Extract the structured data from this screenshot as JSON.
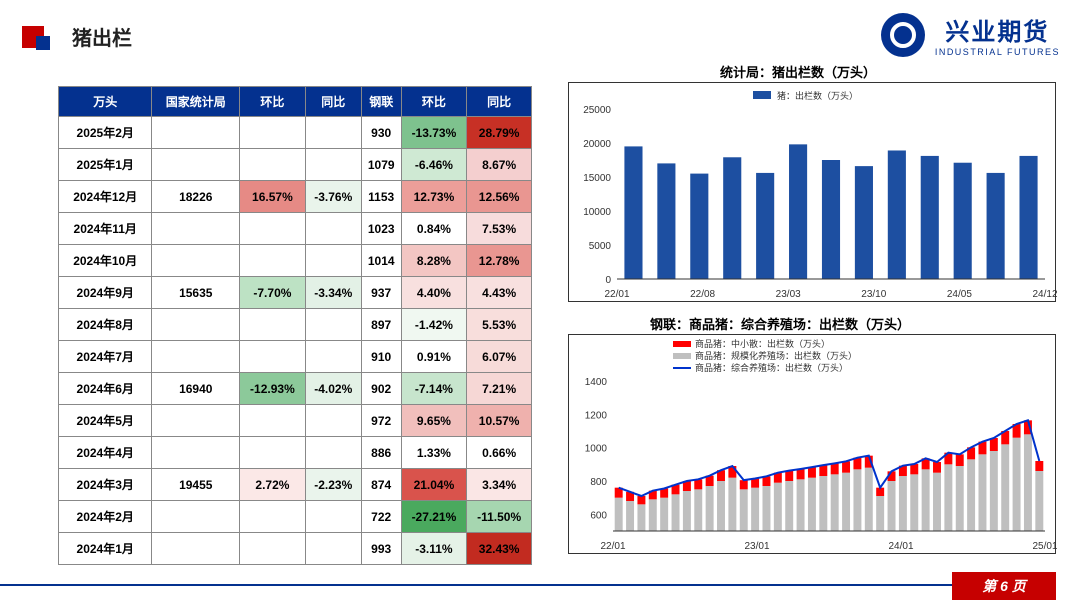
{
  "header": {
    "title": "猪出栏"
  },
  "logo": {
    "cn": "兴业期货",
    "en": "INDUSTRIAL FUTURES"
  },
  "footer": {
    "page": "第 6 页"
  },
  "colors": {
    "brand_red": "#c60000",
    "brand_blue": "#04318f",
    "bar_blue": "#1d4fa1",
    "bar_grey": "#bfbfbf",
    "bar_red": "#ff0000",
    "line_blue": "#0033cc",
    "axis": "#333333",
    "grid": "#e8e8e8",
    "bg": "#ffffff"
  },
  "table": {
    "headers": [
      "万头",
      "国家统计局",
      "环比",
      "同比",
      "钢联",
      "环比",
      "同比"
    ],
    "rows": [
      {
        "m": "2025年2月",
        "a": "",
        "ah": "",
        "ay": "",
        "b": "930",
        "bh": "-13.73%",
        "bh_c": "#7ec28e",
        "by": "28.79%",
        "by_c": "#c73025"
      },
      {
        "m": "2025年1月",
        "a": "",
        "ah": "",
        "ay": "",
        "b": "1079",
        "bh": "-6.46%",
        "bh_c": "#cfe9d3",
        "by": "8.67%",
        "by_c": "#f4cfcf"
      },
      {
        "m": "2024年12月",
        "a": "18226",
        "ah": "16.57%",
        "ah_c": "#e68a85",
        "ay": "-3.76%",
        "ay_c": "#e9f4eb",
        "b": "1153",
        "bh": "12.73%",
        "bh_c": "#ec9e99",
        "by": "12.56%",
        "by_c": "#e99691"
      },
      {
        "m": "2024年11月",
        "a": "",
        "ah": "",
        "ay": "",
        "b": "1023",
        "bh": "0.84%",
        "bh_c": "",
        "by": "7.53%",
        "by_c": "#f7dcdc"
      },
      {
        "m": "2024年10月",
        "a": "",
        "ah": "",
        "ay": "",
        "b": "1014",
        "bh": "8.28%",
        "bh_c": "#f3c6c3",
        "by": "12.78%",
        "by_c": "#e99691"
      },
      {
        "m": "2024年9月",
        "a": "15635",
        "ah": "-7.70%",
        "ah_c": "#bde2c4",
        "ay": "-3.34%",
        "ay_c": "#e3f1e6",
        "b": "937",
        "bh": "4.40%",
        "bh_c": "#f8e0df",
        "by": "4.43%",
        "by_c": "#f8e0df"
      },
      {
        "m": "2024年8月",
        "a": "",
        "ah": "",
        "ay": "",
        "b": "897",
        "bh": "-1.42%",
        "bh_c": "#f0f8f1",
        "by": "5.53%",
        "by_c": "#f8dedc"
      },
      {
        "m": "2024年7月",
        "a": "",
        "ah": "",
        "ay": "",
        "b": "910",
        "bh": "0.91%",
        "bh_c": "",
        "by": "6.07%",
        "by_c": "#f7dbd9"
      },
      {
        "m": "2024年6月",
        "a": "16940",
        "ah": "-12.93%",
        "ah_c": "#8cc99a",
        "ay": "-4.02%",
        "ay_c": "#e3f1e6",
        "b": "902",
        "bh": "-7.14%",
        "bh_c": "#c7e5cd",
        "by": "7.21%",
        "by_c": "#f6d7d5"
      },
      {
        "m": "2024年5月",
        "a": "",
        "ah": "",
        "ay": "",
        "b": "972",
        "bh": "9.65%",
        "bh_c": "#f1bfbc",
        "by": "10.57%",
        "by_c": "#efb1ad"
      },
      {
        "m": "2024年4月",
        "a": "",
        "ah": "",
        "ay": "",
        "b": "886",
        "bh": "1.33%",
        "bh_c": "",
        "by": "0.66%",
        "by_c": ""
      },
      {
        "m": "2024年3月",
        "a": "19455",
        "ah": "2.72%",
        "ah_c": "#fbe8e7",
        "ay": "-2.23%",
        "ay_c": "#eaf4ec",
        "b": "874",
        "bh": "21.04%",
        "bh_c": "#d9534c",
        "by": "3.34%",
        "by_c": "#fae6e5"
      },
      {
        "m": "2024年2月",
        "a": "",
        "ah": "",
        "ay": "",
        "b": "722",
        "bh": "-27.21%",
        "bh_c": "#4aa95e",
        "by": "-11.50%",
        "by_c": "#a6d6b0"
      },
      {
        "m": "2024年1月",
        "a": "",
        "ah": "",
        "ay": "",
        "b": "993",
        "bh": "-3.11%",
        "bh_c": "#e5f2e7",
        "by": "32.43%",
        "by_c": "#c22b20"
      }
    ]
  },
  "chart1": {
    "title": "统计局：猪出栏数（万头）",
    "legend": "猪：出栏数（万头）",
    "type": "bar",
    "bar_color": "#1d4fa1",
    "ylim": [
      0,
      25000
    ],
    "yticks": [
      0,
      5000,
      10000,
      15000,
      20000,
      25000
    ],
    "xticks": [
      "22/01",
      "22/08",
      "23/03",
      "23/10",
      "24/05",
      "24/12"
    ],
    "values": [
      19500,
      17000,
      15500,
      17900,
      15600,
      19800,
      17500,
      16600,
      18900,
      18100,
      17100,
      15600,
      18100
    ]
  },
  "chart2": {
    "title": "钢联：商品猪：综合养殖场：出栏数（万头）",
    "legend": [
      "商品猪：中小散：出栏数（万头）",
      "商品猪：规模化养殖场：出栏数（万头）",
      "商品猪：综合养殖场：出栏数（万头）"
    ],
    "type": "stacked_bar_with_line",
    "colors": {
      "small": "#ff0000",
      "large": "#bfbfbf",
      "line": "#0033cc"
    },
    "ylim": [
      500,
      1400
    ],
    "yticks": [
      600,
      800,
      1000,
      1200,
      1400
    ],
    "xticks": [
      "22/01",
      "23/01",
      "24/01",
      "25/01"
    ],
    "n": 38,
    "large": [
      700,
      680,
      660,
      690,
      700,
      720,
      740,
      750,
      770,
      800,
      820,
      750,
      760,
      770,
      790,
      800,
      810,
      820,
      830,
      840,
      850,
      870,
      880,
      710,
      800,
      830,
      840,
      870,
      850,
      900,
      890,
      930,
      960,
      980,
      1020,
      1060,
      1080,
      860
    ],
    "small": [
      60,
      55,
      50,
      52,
      55,
      58,
      60,
      60,
      62,
      65,
      70,
      55,
      55,
      58,
      60,
      62,
      62,
      63,
      65,
      66,
      68,
      70,
      72,
      50,
      58,
      62,
      62,
      66,
      64,
      70,
      70,
      72,
      76,
      78,
      80,
      82,
      84,
      60
    ],
    "total": [
      760,
      735,
      710,
      742,
      755,
      778,
      800,
      810,
      832,
      865,
      890,
      805,
      815,
      828,
      850,
      862,
      872,
      883,
      895,
      906,
      918,
      940,
      952,
      760,
      858,
      892,
      902,
      936,
      914,
      970,
      960,
      1002,
      1036,
      1058,
      1100,
      1142,
      1164,
      920
    ]
  }
}
